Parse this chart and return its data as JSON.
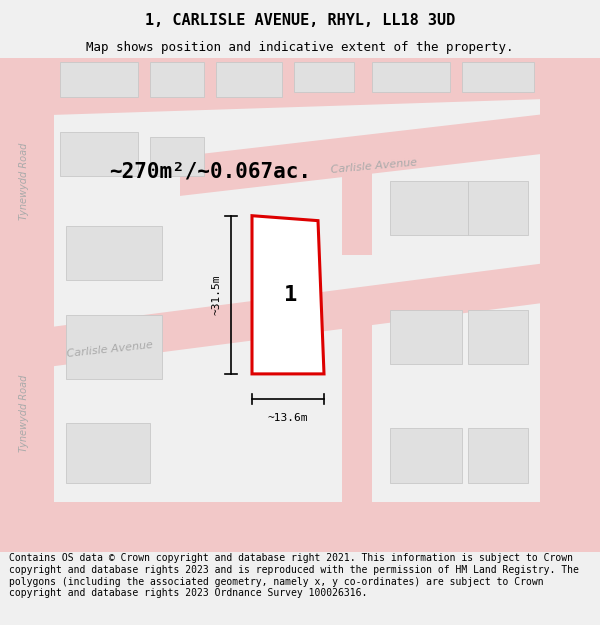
{
  "title": "1, CARLISLE AVENUE, RHYL, LL18 3UD",
  "subtitle": "Map shows position and indicative extent of the property.",
  "area_text": "~270m²/~0.067ac.",
  "dim_width": "~13.6m",
  "dim_height": "~31.5m",
  "plot_number": "1",
  "footer": "Contains OS data © Crown copyright and database right 2021. This information is subject to Crown copyright and database rights 2023 and is reproduced with the permission of HM Land Registry. The polygons (including the associated geometry, namely x, y co-ordinates) are subject to Crown copyright and database rights 2023 Ordnance Survey 100026316.",
  "bg_color": "#f0f0f0",
  "map_bg": "#ffffff",
  "road_color": "#f2c8c8",
  "road_outline": "#e8a0a0",
  "building_fill": "#e0e0e0",
  "building_outline": "#c8c8c8",
  "plot_fill": "#ffffff",
  "plot_outline": "#dd0000",
  "street_label_color": "#aaaaaa",
  "title_fontsize": 11,
  "subtitle_fontsize": 9,
  "footer_fontsize": 7.0,
  "map_xlim": [
    0,
    100
  ],
  "map_ylim": [
    0,
    100
  ]
}
